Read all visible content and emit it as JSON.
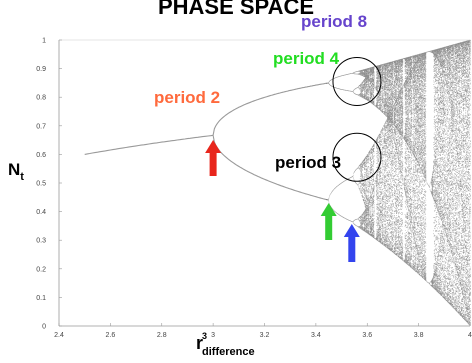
{
  "chart_data": {
    "type": "scatter",
    "title": "PHASE SPACE",
    "xlabel": {
      "main": "r",
      "superscript": "3",
      "subscript": "difference"
    },
    "ylabel": {
      "main": "N",
      "subscript": "t"
    },
    "xlim": [
      2.4,
      4.0
    ],
    "ylim": [
      0,
      1
    ],
    "x_ticks": [
      "2.4",
      "2.6",
      "2.8",
      "3",
      "3.2",
      "3.4",
      "3.6",
      "3.8",
      "4"
    ],
    "y_ticks": [
      "0",
      "0.1",
      "0.2",
      "0.3",
      "0.4",
      "0.5",
      "0.6",
      "0.7",
      "0.8",
      "0.9",
      "1"
    ],
    "grid": false,
    "series": [
      {
        "values": [
          {
            "x": 2.5,
            "y": 0.6
          },
          {
            "x": 2.8,
            "y": 0.643
          },
          {
            "x": 3.0,
            "y": 0.667
          },
          {
            "x": 3.2,
            "y": [
              0.513,
              0.799
            ]
          },
          {
            "x": 3.4,
            "y": [
              0.452,
              0.842
            ]
          },
          {
            "x": 3.5,
            "y": [
              0.383,
              0.501,
              0.827,
              0.875
            ]
          }
        ]
      }
    ],
    "annotations": [
      {
        "text": "period 2",
        "color": "#ff6a3d",
        "arrow_color": "#e8261c",
        "arrow_x": 3.0
      },
      {
        "text": "period 4",
        "color": "#22dd22",
        "arrow_color": "#33cc33",
        "arrow_x": 3.45
      },
      {
        "text": "period 8",
        "color": "#6644cc",
        "arrow_color": "#3344ee",
        "arrow_x": 3.54
      },
      {
        "text": "period 3",
        "color": "#000000",
        "circle_x": 3.56,
        "circle_y": 0.59
      }
    ],
    "period8_circle": {
      "x": 3.56,
      "y": 0.855
    }
  }
}
